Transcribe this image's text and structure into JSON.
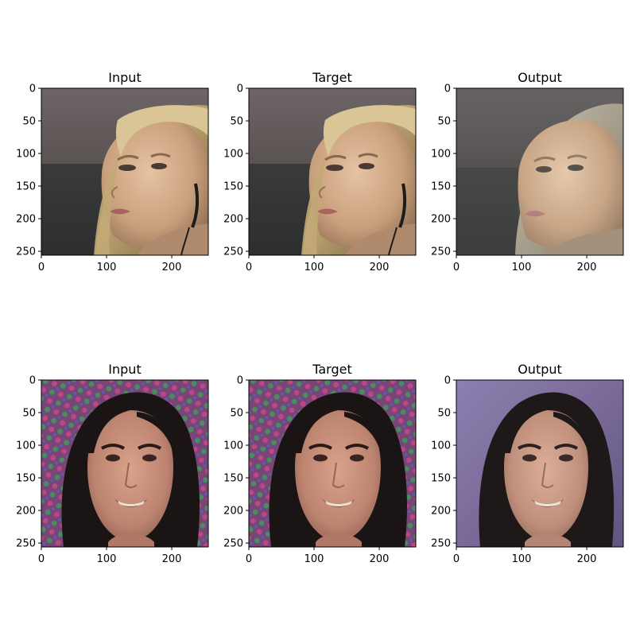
{
  "chart_data": [
    {
      "type": "image",
      "title": "Input",
      "xticks": [
        0,
        100,
        200
      ],
      "yticks": [
        0,
        50,
        100,
        150,
        200,
        250
      ],
      "xlim": [
        0,
        256
      ],
      "ylim": [
        256,
        0
      ],
      "content": "face-1"
    },
    {
      "type": "image",
      "title": "Target",
      "xticks": [
        0,
        100,
        200
      ],
      "yticks": [
        0,
        50,
        100,
        150,
        200,
        250
      ],
      "xlim": [
        0,
        256
      ],
      "ylim": [
        256,
        0
      ],
      "content": "face-1"
    },
    {
      "type": "image",
      "title": "Output",
      "xticks": [
        0,
        100,
        200
      ],
      "yticks": [
        0,
        50,
        100,
        150,
        200,
        250
      ],
      "xlim": [
        0,
        256
      ],
      "ylim": [
        256,
        0
      ],
      "content": "face-1-output"
    },
    {
      "type": "image",
      "title": "Input",
      "xticks": [
        0,
        100,
        200
      ],
      "yticks": [
        0,
        50,
        100,
        150,
        200,
        250
      ],
      "xlim": [
        0,
        256
      ],
      "ylim": [
        256,
        0
      ],
      "content": "face-2"
    },
    {
      "type": "image",
      "title": "Target",
      "xticks": [
        0,
        100,
        200
      ],
      "yticks": [
        0,
        50,
        100,
        150,
        200,
        250
      ],
      "xlim": [
        0,
        256
      ],
      "ylim": [
        256,
        0
      ],
      "content": "face-2"
    },
    {
      "type": "image",
      "title": "Output",
      "xticks": [
        0,
        100,
        200
      ],
      "yticks": [
        0,
        50,
        100,
        150,
        200,
        250
      ],
      "xlim": [
        0,
        256
      ],
      "ylim": [
        256,
        0
      ],
      "content": "face-2-output"
    }
  ]
}
